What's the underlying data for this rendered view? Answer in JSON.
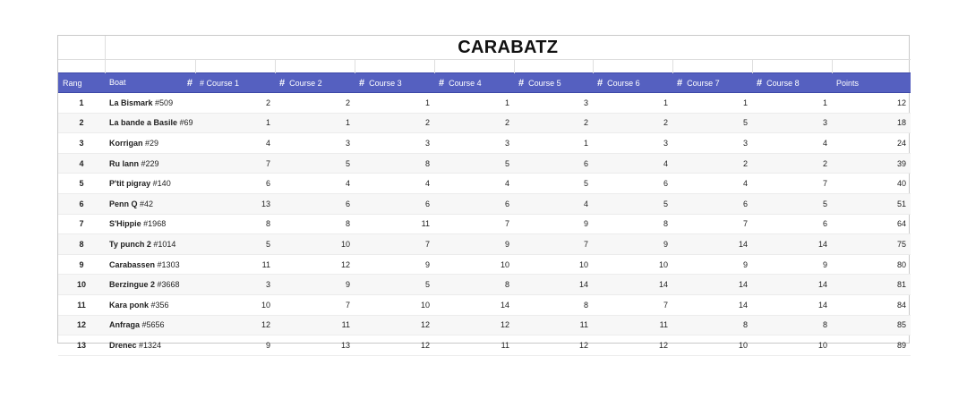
{
  "title": "CARABATZ",
  "headers": {
    "rang": "Rang",
    "boat": "Boat",
    "course1_hash": "#",
    "course1": "# Course 1",
    "course2": "Course 2",
    "course3": "Course 3",
    "course4": "Course 4",
    "course5": "Course 5",
    "course6": "Course 6",
    "course7": "Course 7",
    "course8": "Course 8",
    "points": "Points",
    "hash": "#"
  },
  "rows": [
    {
      "rank": "1",
      "name": "La Bismark",
      "num": "#509",
      "c": [
        "2",
        "2",
        "1",
        "1",
        "3",
        "1",
        "1",
        "1"
      ],
      "points": "12"
    },
    {
      "rank": "2",
      "name": "La bande a Basile",
      "num": "#69",
      "c": [
        "1",
        "1",
        "2",
        "2",
        "2",
        "2",
        "5",
        "3"
      ],
      "points": "18"
    },
    {
      "rank": "3",
      "name": "Korrigan",
      "num": "#29",
      "c": [
        "4",
        "3",
        "3",
        "3",
        "1",
        "3",
        "3",
        "4"
      ],
      "points": "24"
    },
    {
      "rank": "4",
      "name": "Ru lann",
      "num": "#229",
      "c": [
        "7",
        "5",
        "8",
        "5",
        "6",
        "4",
        "2",
        "2"
      ],
      "points": "39"
    },
    {
      "rank": "5",
      "name": "P'tit pigray",
      "num": "#140",
      "c": [
        "6",
        "4",
        "4",
        "4",
        "5",
        "6",
        "4",
        "7"
      ],
      "points": "40"
    },
    {
      "rank": "6",
      "name": "Penn Q",
      "num": "#42",
      "c": [
        "13",
        "6",
        "6",
        "6",
        "4",
        "5",
        "6",
        "5"
      ],
      "points": "51"
    },
    {
      "rank": "7",
      "name": "S'Hippie",
      "num": "#1968",
      "c": [
        "8",
        "8",
        "11",
        "7",
        "9",
        "8",
        "7",
        "6"
      ],
      "points": "64"
    },
    {
      "rank": "8",
      "name": "Ty punch 2",
      "num": "#1014",
      "c": [
        "5",
        "10",
        "7",
        "9",
        "7",
        "9",
        "14",
        "14"
      ],
      "points": "75"
    },
    {
      "rank": "9",
      "name": "Carabassen",
      "num": "#1303",
      "c": [
        "11",
        "12",
        "9",
        "10",
        "10",
        "10",
        "9",
        "9"
      ],
      "points": "80"
    },
    {
      "rank": "10",
      "name": "Berzingue 2",
      "num": "#3668",
      "c": [
        "3",
        "9",
        "5",
        "8",
        "14",
        "14",
        "14",
        "14"
      ],
      "points": "81"
    },
    {
      "rank": "11",
      "name": "Kara ponk",
      "num": "#356",
      "c": [
        "10",
        "7",
        "10",
        "14",
        "8",
        "7",
        "14",
        "14"
      ],
      "points": "84"
    },
    {
      "rank": "12",
      "name": "Anfraga",
      "num": "#5656",
      "c": [
        "12",
        "11",
        "12",
        "12",
        "11",
        "11",
        "8",
        "8"
      ],
      "points": "85"
    },
    {
      "rank": "13",
      "name": "Drenec",
      "num": "#1324",
      "c": [
        "9",
        "13",
        "12",
        "11",
        "12",
        "12",
        "10",
        "10"
      ],
      "points": "89"
    }
  ]
}
